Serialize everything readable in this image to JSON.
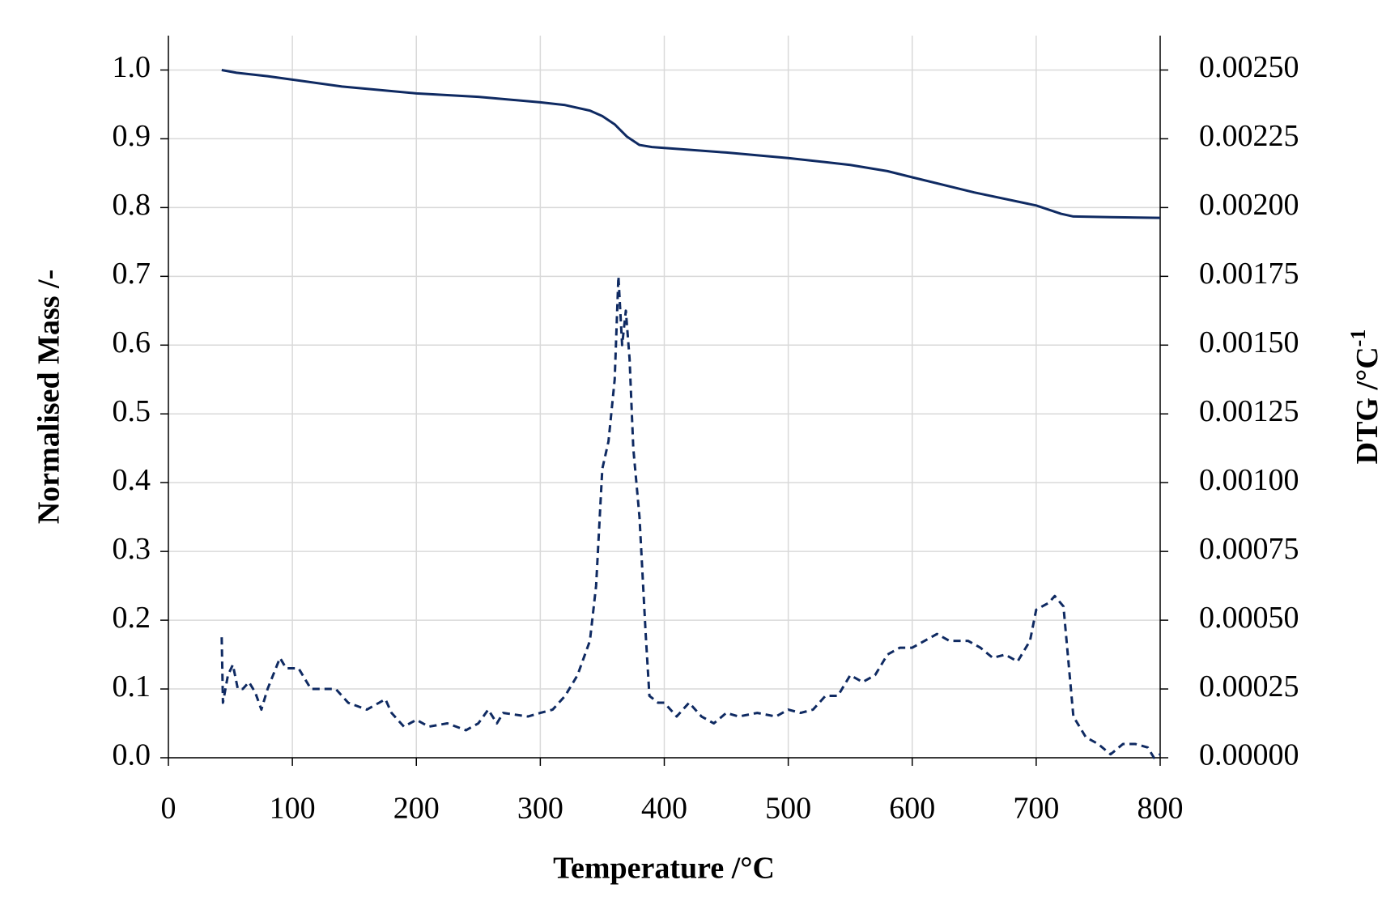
{
  "chart_data": {
    "type": "line",
    "x_label": "Temperature /°C",
    "y_label": "Normalised Mass /-",
    "y2_label": "DTG  /°C",
    "y2_label_superscript": "-1",
    "xlim": [
      0,
      800
    ],
    "xticks": [
      0,
      100,
      200,
      300,
      400,
      500,
      600,
      700,
      800
    ],
    "ylim": [
      0,
      1.05
    ],
    "yticks": [
      {
        "value": 0,
        "label": "0.0"
      },
      0.1,
      0.2,
      0.3,
      0.4,
      0.5,
      0.6,
      0.7,
      0.8,
      0.9,
      {
        "value": 1,
        "label": "1.0"
      }
    ],
    "y2lim": [
      0,
      0.002625
    ],
    "y2ticks": [
      {
        "value": 0,
        "label": "0.00000"
      },
      {
        "value": 0.00025,
        "label": "0.00025"
      },
      {
        "value": 0.0005,
        "label": "0.00050"
      },
      {
        "value": 0.00075,
        "label": "0.00075"
      },
      {
        "value": 0.001,
        "label": "0.00100"
      },
      {
        "value": 0.00125,
        "label": "0.00125"
      },
      {
        "value": 0.0015,
        "label": "0.00150"
      },
      {
        "value": 0.00175,
        "label": "0.00175"
      },
      {
        "value": 0.002,
        "label": "0.00200"
      },
      {
        "value": 0.00225,
        "label": "0.00225"
      },
      {
        "value": 0.0025,
        "label": "0.00250"
      }
    ],
    "grid": true,
    "series": [
      {
        "color": "#0f2a62",
        "dashed": false,
        "x": [
          43,
          55,
          80,
          100,
          140,
          200,
          250,
          300,
          320,
          340,
          350,
          360,
          370,
          380,
          390,
          420,
          450,
          500,
          550,
          580,
          600,
          650,
          700,
          720,
          730,
          760,
          800
        ],
        "values": [
          1.0,
          0.996,
          0.991,
          0.986,
          0.976,
          0.966,
          0.961,
          0.953,
          0.949,
          0.941,
          0.933,
          0.921,
          0.903,
          0.891,
          0.888,
          0.884,
          0.88,
          0.872,
          0.862,
          0.853,
          0.844,
          0.822,
          0.803,
          0.791,
          0.787,
          0.786,
          0.785
        ]
      },
      {
        "color": "#0f2a62",
        "dashed": true,
        "axis": "y2",
        "x": [
          43,
          44,
          48,
          52,
          56,
          60,
          65,
          70,
          75,
          80,
          90,
          95,
          105,
          115,
          125,
          135,
          145,
          160,
          170,
          175,
          180,
          190,
          200,
          210,
          225,
          240,
          250,
          258,
          265,
          270,
          290,
          300,
          310,
          320,
          330,
          340,
          345,
          350,
          355,
          360,
          363,
          366,
          369,
          372,
          375,
          380,
          385,
          388,
          395,
          400,
          410,
          420,
          430,
          440,
          450,
          460,
          475,
          490,
          500,
          510,
          520,
          530,
          540,
          550,
          560,
          570,
          580,
          590,
          600,
          610,
          620,
          630,
          645,
          655,
          665,
          675,
          685,
          695,
          700,
          710,
          715,
          722,
          730,
          740,
          750,
          760,
          770,
          780,
          790,
          795,
          800
        ],
        "values": [
          0.000438,
          0.0002,
          0.0003,
          0.000338,
          0.00025,
          0.00025,
          0.000275,
          0.000238,
          0.000175,
          0.00025,
          0.000363,
          0.000325,
          0.000325,
          0.00025,
          0.00025,
          0.00025,
          0.0002,
          0.000175,
          0.0002,
          0.000213,
          0.000163,
          0.000113,
          0.000138,
          0.000113,
          0.000125,
          0.0001,
          0.000125,
          0.000175,
          0.000125,
          0.000163,
          0.00015,
          0.000163,
          0.000175,
          0.000225,
          0.0003,
          0.000425,
          0.000625,
          0.00105,
          0.00115,
          0.001375,
          0.00175,
          0.0015,
          0.001625,
          0.00145,
          0.001125,
          0.000875,
          0.00045,
          0.000225,
          0.0002,
          0.0002,
          0.00015,
          0.0002,
          0.00015,
          0.000125,
          0.000163,
          0.00015,
          0.000163,
          0.00015,
          0.000175,
          0.000163,
          0.000175,
          0.000225,
          0.000225,
          0.0003,
          0.000275,
          0.0003,
          0.000375,
          0.0004,
          0.0004,
          0.000425,
          0.00045,
          0.000425,
          0.000425,
          0.0004,
          0.000363,
          0.000375,
          0.00035,
          0.000425,
          0.000538,
          0.000563,
          0.000588,
          0.00055,
          0.00015,
          7.5e-05,
          5e-05,
          1.25e-05,
          5e-05,
          5e-05,
          3.75e-05,
          0.0,
          1.25e-05
        ]
      }
    ]
  }
}
